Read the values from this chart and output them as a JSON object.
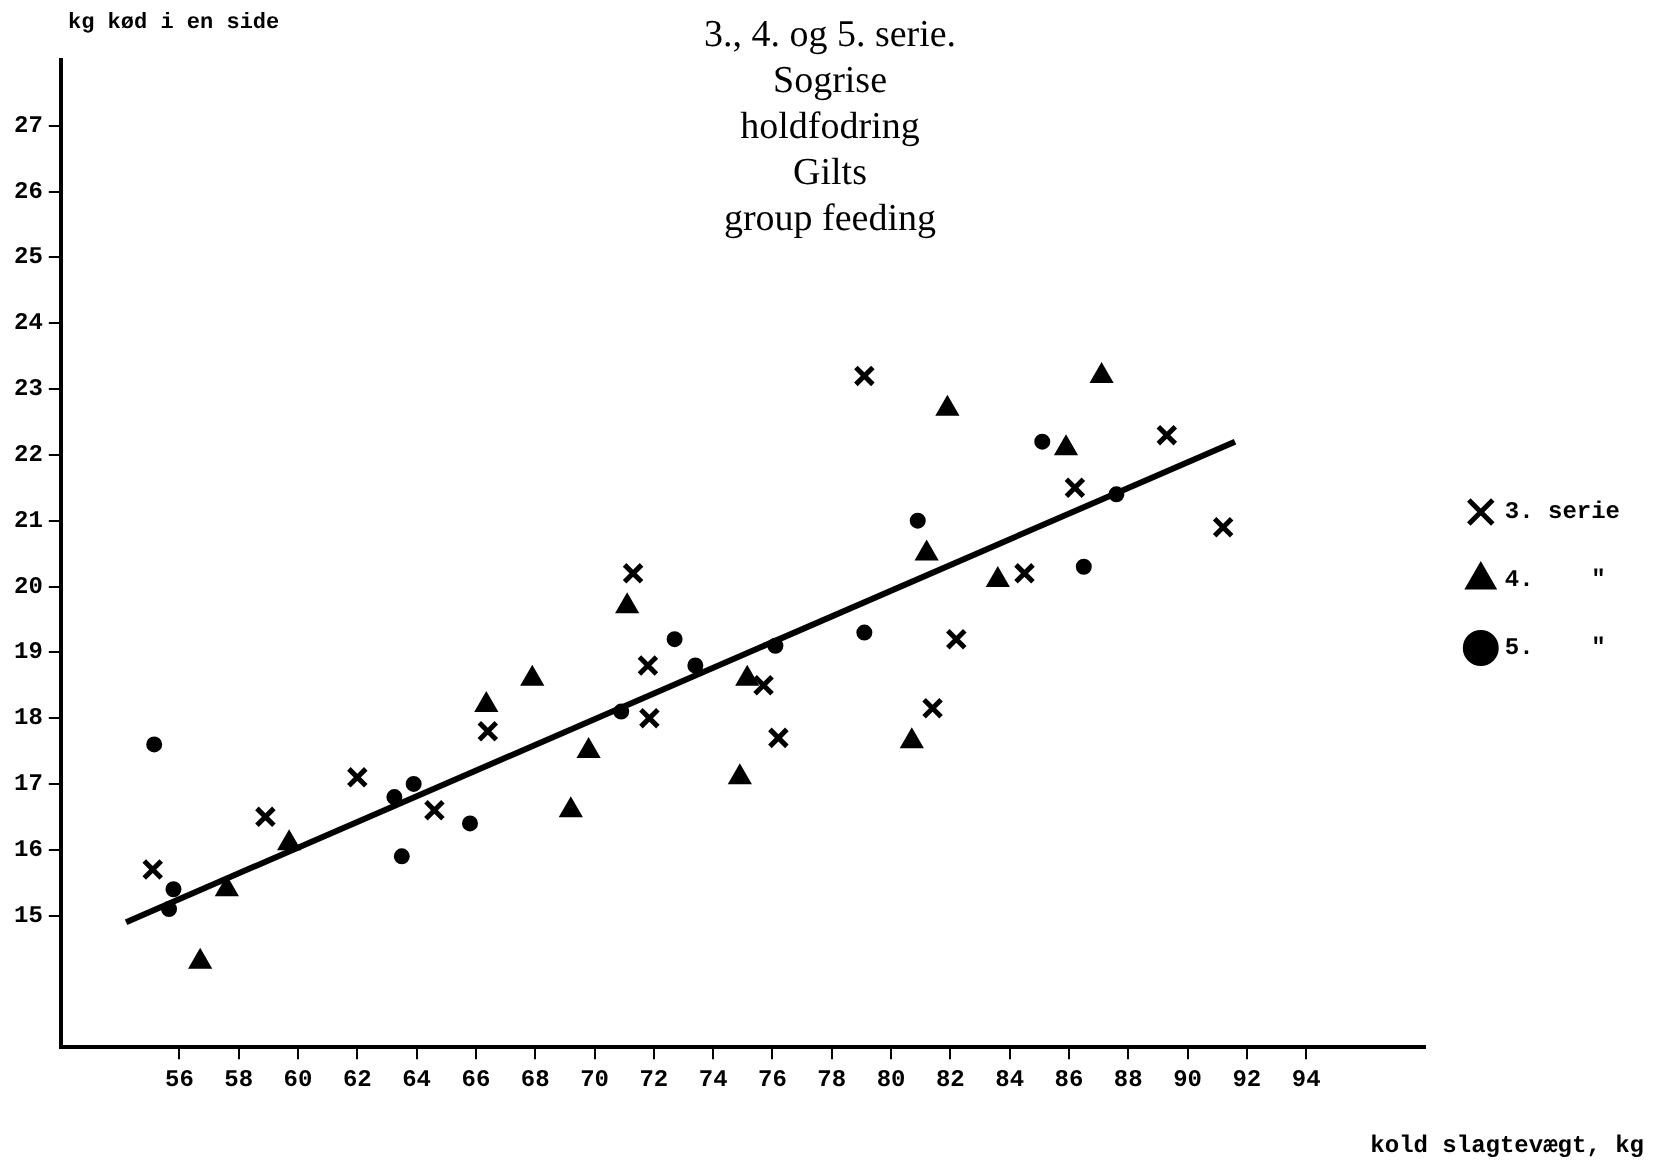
{
  "chart_data": {
    "type": "scatter",
    "title": "3., 4. og 5. serie.\nSogrise\nholdfodring\nGilts\ngroup feeding",
    "xlabel": "kold slagtevægt, kg",
    "ylabel": "kg kød i en side",
    "xlim": [
      52,
      98
    ],
    "xticks": [
      56,
      58,
      60,
      62,
      64,
      66,
      68,
      70,
      72,
      74,
      76,
      78,
      80,
      82,
      84,
      86,
      88,
      90,
      92,
      94
    ],
    "ylim": [
      13,
      28
    ],
    "yticks": [
      15,
      16,
      17,
      18,
      19,
      20,
      21,
      22,
      23,
      24,
      25,
      26,
      27
    ],
    "grid": false,
    "legend": "right",
    "series": [
      {
        "name": "3. serie",
        "color": "#000000",
        "marker": "cross",
        "x": [
          55.1,
          58.9,
          62.0,
          64.6,
          66.4,
          71.3,
          71.8,
          71.85,
          75.7,
          76.2,
          79.1,
          82.2,
          81.4,
          84.5,
          86.2,
          89.3,
          91.2
        ],
        "values": [
          15.7,
          16.5,
          17.1,
          16.6,
          17.8,
          20.2,
          18.8,
          18.0,
          18.5,
          17.7,
          23.2,
          19.2,
          18.15,
          20.2,
          21.5,
          22.3,
          20.9
        ]
      },
      {
        "name": "4.    \"",
        "color": "#000000",
        "marker": "triangle",
        "x": [
          56.7,
          57.6,
          59.7,
          66.35,
          67.9,
          69.8,
          69.2,
          71.1,
          75.15,
          74.9,
          81.2,
          80.7,
          81.9,
          83.6,
          87.1,
          85.9
        ],
        "values": [
          14.3,
          15.4,
          16.1,
          18.2,
          18.6,
          17.5,
          16.6,
          19.7,
          18.6,
          17.1,
          20.5,
          17.65,
          22.7,
          20.1,
          23.2,
          22.1
        ]
      },
      {
        "name": "5.    \"",
        "color": "#000000",
        "marker": "circle",
        "x": [
          55.15,
          55.8,
          55.65,
          63.25,
          63.9,
          63.5,
          65.8,
          70.9,
          72.7,
          73.4,
          76.1,
          79.1,
          80.9,
          85.1,
          87.6,
          86.5
        ],
        "values": [
          17.6,
          15.4,
          15.1,
          16.8,
          17.0,
          15.9,
          16.4,
          18.1,
          19.2,
          18.8,
          19.1,
          19.3,
          21.0,
          22.2,
          21.4,
          20.3
        ]
      },
      {
        "type": "line",
        "color": "#000000",
        "marker": "none",
        "line_style": "solid",
        "x": [
          54.2,
          91.6
        ],
        "values": [
          14.9,
          22.2
        ]
      }
    ]
  }
}
